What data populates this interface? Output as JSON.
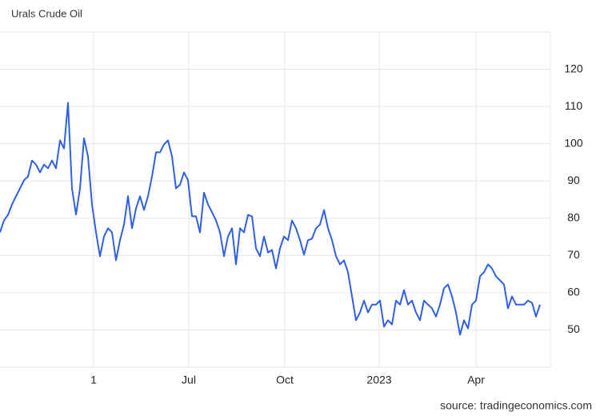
{
  "chart_data": {
    "type": "line",
    "title": "Urals Crude Oil",
    "source": "source: tradingeconomics.com",
    "series": [
      {
        "name": "Urals Crude Oil",
        "color": "#2f5fe6",
        "values": [
          76.2,
          79.4,
          80.9,
          83.7,
          85.9,
          88,
          90.2,
          91.2,
          95.5,
          94.4,
          92.3,
          94.4,
          93.4,
          95.5,
          93.4,
          100.9,
          98.7,
          111,
          88,
          81,
          88,
          101.5,
          96.6,
          83.7,
          76.2,
          69.8,
          75.1,
          77.3,
          76.2,
          68.7,
          74.1,
          78.3,
          85.9,
          77.3,
          82.6,
          85.9,
          82.2,
          85.9,
          91.2,
          97.7,
          97.7,
          99.8,
          100.9,
          96.6,
          88,
          89,
          92.3,
          90.2,
          80.5,
          80.5,
          76.2,
          86.9,
          83.7,
          81.6,
          79.4,
          76.2,
          69.8,
          75.1,
          77.3,
          67.6,
          77.3,
          76.2,
          80.9,
          80.5,
          71.9,
          69.8,
          75.1,
          70.8,
          71.5,
          66.5,
          71.9,
          75.1,
          74.1,
          79.4,
          77.3,
          74.1,
          70.2,
          74.1,
          74.5,
          77.3,
          78.3,
          82.2,
          77.3,
          74.1,
          69.8,
          67.6,
          68.7,
          65.5,
          59,
          52.6,
          54.7,
          57.9,
          54.7,
          56.8,
          56.8,
          57.9,
          50.9,
          52.6,
          51.5,
          57.9,
          56.8,
          60.7,
          56.8,
          57.9,
          54.7,
          52.6,
          57.9,
          56.8,
          55.8,
          53.6,
          56.8,
          61.2,
          62.2,
          59,
          54.7,
          48.7,
          52.6,
          50.4,
          56.8,
          57.9,
          64.4,
          65.5,
          67.6,
          66.5,
          64.4,
          63.3,
          62.2,
          55.8,
          59,
          56.8,
          56.8,
          56.8,
          57.9,
          57.3,
          53.6,
          56.8
        ]
      }
    ],
    "xlim": [
      0,
      137.6
    ],
    "xticks": [
      {
        "value": 23.4,
        "label": "1"
      },
      {
        "value": 47.2,
        "label": "Jul"
      },
      {
        "value": 71.2,
        "label": "Oct"
      },
      {
        "value": 94.8,
        "label": "2023"
      },
      {
        "value": 119,
        "label": "Apr"
      }
    ],
    "ylim": [
      40,
      130
    ],
    "yticks": [
      50,
      60,
      70,
      80,
      90,
      100,
      110,
      120
    ],
    "grid": true
  }
}
